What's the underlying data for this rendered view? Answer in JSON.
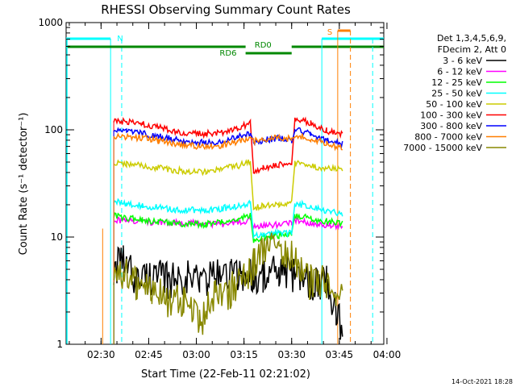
{
  "colors": {
    "background": "#ffffff",
    "axis": "#000000",
    "bar_green": "#008800",
    "cyan": "#00ffff",
    "orange": "#ff7f00"
  },
  "chart_data": {
    "type": "line",
    "title": "RHESSI Observing Summary Count Rates",
    "xlabel": "Start Time (22-Feb-11 02:21:02)",
    "ylabel": "Count Rate (s⁻¹ detector⁻¹)",
    "yscale": "log",
    "ylim": [
      1,
      1000
    ],
    "xlim_minutes": [
      -2,
      98
    ],
    "x_ticks": [
      {
        "label": "02:30",
        "t": 9
      },
      {
        "label": "02:45",
        "t": 24
      },
      {
        "label": "03:00",
        "t": 39
      },
      {
        "label": "03:15",
        "t": 54
      },
      {
        "label": "03:30",
        "t": 69
      },
      {
        "label": "03:45",
        "t": 84
      },
      {
        "label": "04:00",
        "t": 99
      }
    ],
    "y_ticks": [
      {
        "label": "1",
        "v": 1
      },
      {
        "label": "10",
        "v": 10
      },
      {
        "label": "100",
        "v": 100
      },
      {
        "label": "1000",
        "v": 1000
      }
    ],
    "footer": "14-Oct-2021 18:28",
    "legend": {
      "header": [
        "Det 1,3,4,5,6,9,",
        "FDecim 2, Att 0"
      ],
      "position": "right"
    },
    "series": [
      {
        "name": "3 - 6 keV",
        "color": "#000000",
        "x": [
          13,
          16,
          20,
          25,
          30,
          35,
          40,
          45,
          50,
          54,
          57,
          60,
          65,
          69,
          72,
          75,
          80,
          83,
          85
        ],
        "values": [
          5.1,
          5.8,
          4.0,
          4.3,
          3.9,
          4.3,
          4.0,
          4.3,
          4.7,
          4.4,
          4.4,
          4.4,
          4.6,
          4.5,
          4.2,
          3.8,
          3.9,
          2.0,
          1.4
        ]
      },
      {
        "name": "6 - 12 keV",
        "color": "#ff00ff",
        "x": [
          13,
          17,
          22,
          27,
          32,
          37,
          42,
          47,
          52,
          56,
          57,
          60,
          65,
          69,
          70,
          75,
          80,
          85
        ],
        "values": [
          14.5,
          14.0,
          14.2,
          13.5,
          13.8,
          13.5,
          13.4,
          13.2,
          13.8,
          14.4,
          12.6,
          12.9,
          13.0,
          13.5,
          14.5,
          13.6,
          13.0,
          12.5
        ]
      },
      {
        "name": "12 - 25 keV",
        "color": "#00ff00",
        "x": [
          13,
          17,
          22,
          27,
          32,
          37,
          42,
          47,
          52,
          56,
          57,
          60,
          65,
          69,
          70,
          75,
          80,
          85
        ],
        "values": [
          15.8,
          15.0,
          14.5,
          13.8,
          13.5,
          13.2,
          13.2,
          13.8,
          14.6,
          15.8,
          9.2,
          10.0,
          10.3,
          10.5,
          16.0,
          14.8,
          14.0,
          13.5
        ]
      },
      {
        "name": "25 - 50 keV",
        "color": "#00ffff",
        "x": [
          13,
          17,
          22,
          27,
          32,
          37,
          42,
          47,
          52,
          56,
          57,
          60,
          65,
          69,
          70,
          75,
          80,
          85
        ],
        "values": [
          21.5,
          20.5,
          19.5,
          18.8,
          18.0,
          17.8,
          17.8,
          18.5,
          19.5,
          21.0,
          10.3,
          10.6,
          11.0,
          11.0,
          20.5,
          19.5,
          17.5,
          16.5
        ]
      },
      {
        "name": "50 - 100 keV",
        "color": "#cccc00",
        "x": [
          13,
          17,
          22,
          27,
          32,
          37,
          42,
          47,
          52,
          56,
          57,
          60,
          65,
          69,
          70,
          75,
          80,
          85
        ],
        "values": [
          49,
          48,
          46,
          44,
          42,
          41,
          41,
          43,
          46,
          50,
          18.5,
          19.5,
          20.0,
          20.5,
          49,
          46,
          44,
          42
        ]
      },
      {
        "name": "100 - 300 keV",
        "color": "#ff0000",
        "x": [
          13,
          17,
          22,
          27,
          32,
          37,
          42,
          47,
          52,
          56,
          57,
          60,
          65,
          69,
          70,
          75,
          80,
          85
        ],
        "values": [
          120,
          118,
          113,
          105,
          97,
          92,
          92,
          95,
          104,
          116,
          40,
          44,
          47,
          47,
          128,
          115,
          98,
          91
        ]
      },
      {
        "name": "300 - 800 keV",
        "color": "#0000ff",
        "x": [
          13,
          17,
          22,
          27,
          32,
          37,
          42,
          47,
          52,
          56,
          57,
          60,
          65,
          69,
          70,
          75,
          80,
          85
        ],
        "values": [
          98,
          96,
          93,
          87,
          81,
          77,
          76,
          78,
          85,
          93,
          76,
          80,
          84,
          80,
          102,
          92,
          80,
          74
        ]
      },
      {
        "name": "800 - 7000 keV",
        "color": "#ff7f00",
        "x": [
          13,
          17,
          22,
          27,
          32,
          37,
          42,
          47,
          52,
          56,
          57,
          60,
          65,
          69,
          70,
          75,
          80,
          85
        ],
        "values": [
          87,
          86,
          84,
          79,
          74,
          71,
          70,
          72,
          78,
          85,
          78,
          82,
          85,
          82,
          90,
          83,
          74,
          68
        ]
      },
      {
        "name": "7000 - 15000 keV",
        "color": "#888800",
        "x": [
          13,
          16,
          20,
          25,
          30,
          35,
          40,
          45,
          50,
          54,
          57,
          60,
          65,
          69,
          72,
          75,
          80,
          83,
          85
        ],
        "values": [
          3.8,
          4.5,
          3.5,
          3.4,
          2.4,
          2.5,
          1.6,
          2.8,
          3.2,
          4.2,
          5.5,
          7.0,
          8.5,
          6.5,
          4.4,
          3.8,
          3.6,
          3.0,
          3.0
        ]
      }
    ],
    "annotations": [
      {
        "text": "N",
        "t": 15
      },
      {
        "text": "RD0",
        "t": 60
      },
      {
        "text": "RD6",
        "t": 49
      },
      {
        "text": "S",
        "t": 81
      }
    ]
  }
}
